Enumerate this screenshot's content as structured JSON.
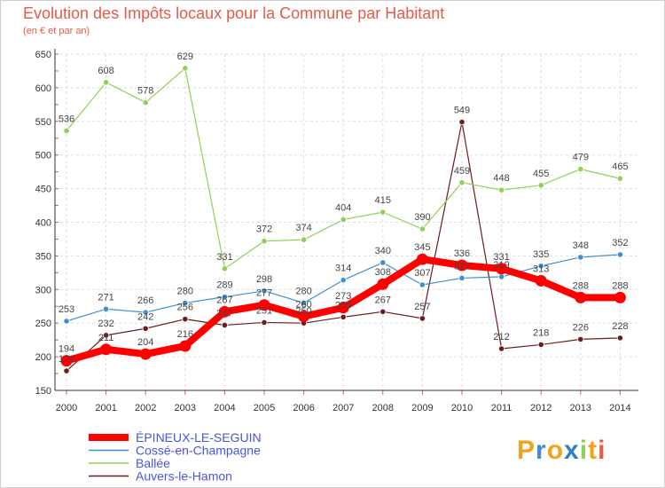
{
  "chart_data": {
    "type": "line",
    "title": "Evolution des Impôts locaux pour la Commune par Habitant",
    "subtitle": "(en € et par an)",
    "x": [
      "2000",
      "2001",
      "2002",
      "2003",
      "2004",
      "2005",
      "2006",
      "2007",
      "2008",
      "2009",
      "2010",
      "2011",
      "2012",
      "2013",
      "2014"
    ],
    "ylim": [
      150,
      650
    ],
    "yticks": [
      150,
      200,
      250,
      300,
      350,
      400,
      450,
      500,
      550,
      600,
      650
    ],
    "grid": true,
    "legend_position": "bottom-left",
    "series": [
      {
        "name": "ÉPINEUX-LE-SEGUIN",
        "color": "#ff0000",
        "values": [
          194,
          211,
          204,
          216,
          267,
          277,
          260,
          273,
          308,
          345,
          336,
          331,
          313,
          288,
          288
        ],
        "labels": [
          "194",
          "211",
          "204",
          "216",
          "267",
          "277",
          "260",
          "273",
          "308",
          "345",
          "336",
          "331",
          "313",
          "288",
          "288"
        ]
      },
      {
        "name": "Cossé-en-Champagne",
        "color": "#3d8fcf",
        "values": [
          253,
          271,
          266,
          280,
          289,
          298,
          280,
          314,
          340,
          307,
          317,
          319,
          335,
          348,
          352
        ],
        "labels": [
          "253",
          "271",
          "266",
          "280",
          "289",
          "298",
          "280",
          "314",
          "340",
          "307",
          "317",
          "319",
          "335",
          "348",
          "352"
        ]
      },
      {
        "name": "Ballée",
        "color": "#8fd05a",
        "values": [
          536,
          608,
          578,
          629,
          331,
          372,
          374,
          404,
          415,
          390,
          459,
          448,
          455,
          479,
          465
        ],
        "labels": [
          "536",
          "608",
          "578",
          "629",
          "331",
          "372",
          "374",
          "404",
          "415",
          "390",
          "459",
          "448",
          "455",
          "479",
          "465"
        ]
      },
      {
        "name": "Auvers-le-Hamon",
        "color": "#6b1c1c",
        "values": [
          179,
          232,
          242,
          256,
          247,
          251,
          250,
          259,
          267,
          257,
          549,
          212,
          218,
          226,
          228
        ],
        "labels": [
          "179",
          "232",
          "242",
          "256",
          "247",
          "251",
          "250",
          "259",
          "267",
          "257",
          "549",
          "212",
          "218",
          "226",
          "228"
        ]
      }
    ]
  },
  "logo": {
    "text": "Proxiti"
  }
}
